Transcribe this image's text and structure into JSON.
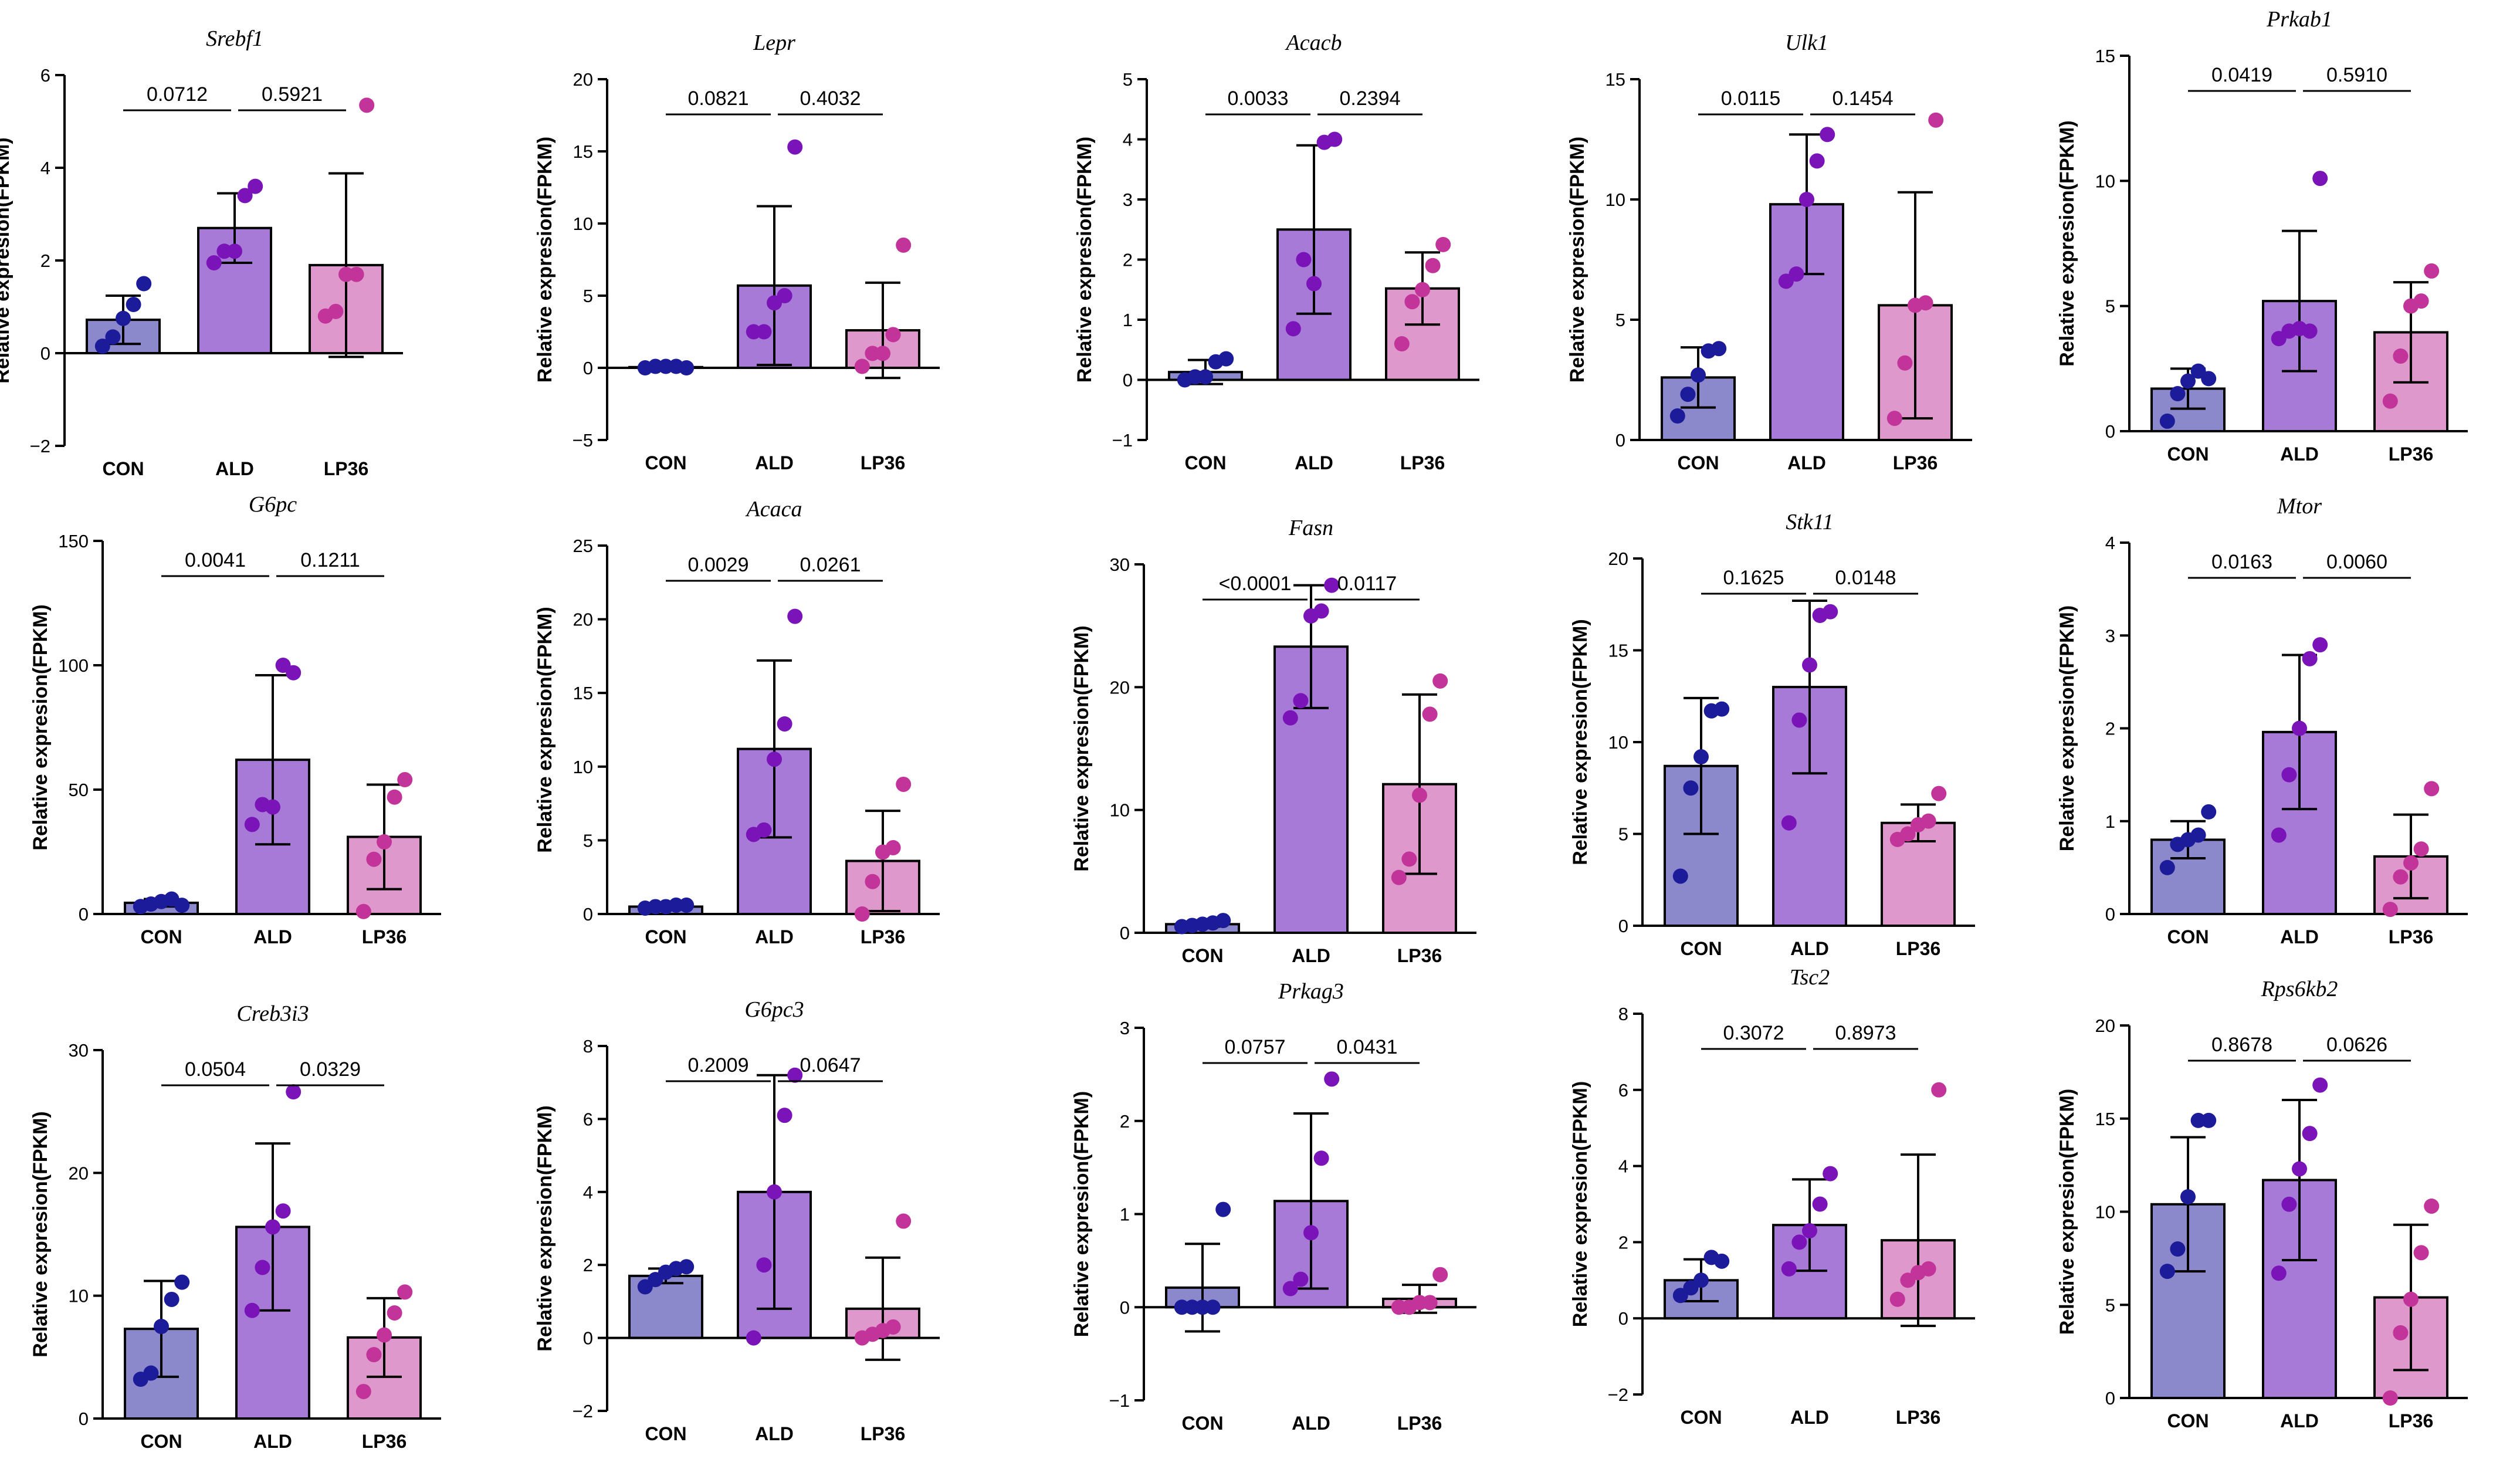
{
  "figure": {
    "ylabel": "Relative expresion(FPKM)",
    "groups": [
      "CON",
      "ALD",
      "LP36"
    ],
    "colors": {
      "bar": [
        "#8c88cc",
        "#a87ad8",
        "#de98cc"
      ],
      "dot": [
        "#1c1c9a",
        "#7a14b8",
        "#c2349a"
      ],
      "axis": "#000000"
    }
  },
  "chart_data": [
    {
      "title": "Srebf1",
      "type": "bar",
      "ylim": [
        -2,
        6
      ],
      "yticks": [
        -2,
        0,
        2,
        4,
        6
      ],
      "ytick_labels": [
        "−2",
        "0",
        "2",
        "4",
        "6"
      ],
      "series": [
        {
          "name": "CON",
          "mean": 0.72,
          "sd": 0.52,
          "points": [
            0.15,
            0.35,
            0.75,
            1.05,
            1.5
          ]
        },
        {
          "name": "ALD",
          "mean": 2.7,
          "sd": 0.75,
          "points": [
            1.95,
            2.2,
            2.2,
            3.4,
            3.6
          ]
        },
        {
          "name": "LP36",
          "mean": 1.9,
          "sd": 1.98,
          "points": [
            0.8,
            0.9,
            1.7,
            1.7,
            5.35
          ]
        }
      ],
      "pvalues": [
        "0.0712",
        "0.5921"
      ]
    },
    {
      "title": "Lepr",
      "type": "bar",
      "ylim": [
        -5,
        20
      ],
      "yticks": [
        -5,
        0,
        5,
        10,
        15,
        20
      ],
      "ytick_labels": [
        "−5",
        "0",
        "5",
        "10",
        "15",
        "20"
      ],
      "series": [
        {
          "name": "CON",
          "mean": 0.05,
          "sd": 0.03,
          "points": [
            0.0,
            0.1,
            0.1,
            0.1,
            0.0
          ]
        },
        {
          "name": "ALD",
          "mean": 5.7,
          "sd": 5.5,
          "points": [
            2.5,
            2.5,
            4.5,
            5.0,
            15.3
          ]
        },
        {
          "name": "LP36",
          "mean": 2.6,
          "sd": 3.3,
          "points": [
            0.1,
            1.0,
            1.0,
            2.3,
            8.5
          ]
        }
      ],
      "pvalues": [
        "0.0821",
        "0.4032"
      ]
    },
    {
      "title": "Acacb",
      "type": "bar",
      "ylim": [
        -1,
        5
      ],
      "yticks": [
        -1,
        0,
        1,
        2,
        3,
        4,
        5
      ],
      "ytick_labels": [
        "−1",
        "0",
        "1",
        "2",
        "3",
        "4",
        "5"
      ],
      "series": [
        {
          "name": "CON",
          "mean": 0.13,
          "sd": 0.2,
          "points": [
            0.0,
            0.05,
            0.05,
            0.3,
            0.35
          ]
        },
        {
          "name": "ALD",
          "mean": 2.5,
          "sd": 1.4,
          "points": [
            0.85,
            2.0,
            1.6,
            3.95,
            4.0
          ]
        },
        {
          "name": "LP36",
          "mean": 1.52,
          "sd": 0.6,
          "points": [
            0.6,
            1.3,
            1.5,
            1.9,
            2.25
          ]
        }
      ],
      "pvalues": [
        "0.0033",
        "0.2394"
      ]
    },
    {
      "title": "Ulk1",
      "type": "bar",
      "ylim": [
        0,
        15
      ],
      "yticks": [
        0,
        5,
        10,
        15
      ],
      "ytick_labels": [
        "0",
        "5",
        "10",
        "15"
      ],
      "series": [
        {
          "name": "CON",
          "mean": 2.6,
          "sd": 1.25,
          "points": [
            1.0,
            1.9,
            2.7,
            3.7,
            3.8
          ]
        },
        {
          "name": "ALD",
          "mean": 9.8,
          "sd": 2.9,
          "points": [
            6.6,
            6.9,
            10.0,
            11.6,
            12.7
          ]
        },
        {
          "name": "LP36",
          "mean": 5.6,
          "sd": 4.7,
          "points": [
            0.9,
            3.2,
            5.6,
            5.7,
            13.3
          ]
        }
      ],
      "pvalues": [
        "0.0115",
        "0.1454"
      ]
    },
    {
      "title": "Prkab1",
      "type": "bar",
      "ylim": [
        0,
        15
      ],
      "yticks": [
        0,
        5,
        10,
        15
      ],
      "ytick_labels": [
        "0",
        "5",
        "10",
        "15"
      ],
      "series": [
        {
          "name": "CON",
          "mean": 1.7,
          "sd": 0.8,
          "points": [
            0.4,
            1.5,
            2.0,
            2.4,
            2.1
          ]
        },
        {
          "name": "ALD",
          "mean": 5.2,
          "sd": 2.8,
          "points": [
            3.7,
            4.0,
            4.1,
            4.0,
            10.1
          ]
        },
        {
          "name": "LP36",
          "mean": 3.95,
          "sd": 2.0,
          "points": [
            1.2,
            3.0,
            5.0,
            5.2,
            6.4
          ]
        }
      ],
      "pvalues": [
        "0.0419",
        "0.5910"
      ]
    },
    {
      "title": "G6pc",
      "type": "bar",
      "ylim": [
        0,
        150
      ],
      "yticks": [
        0,
        50,
        100,
        150
      ],
      "ytick_labels": [
        "0",
        "50",
        "100",
        "150"
      ],
      "series": [
        {
          "name": "CON",
          "mean": 4.5,
          "sd": 1.5,
          "points": [
            3.0,
            4.0,
            5.0,
            6.0,
            3.5
          ]
        },
        {
          "name": "ALD",
          "mean": 62,
          "sd": 34,
          "points": [
            36.0,
            44.0,
            43.0,
            100.0,
            97.0
          ]
        },
        {
          "name": "LP36",
          "mean": 31,
          "sd": 21,
          "points": [
            1.0,
            22.0,
            29.0,
            47.0,
            54.0
          ]
        }
      ],
      "pvalues": [
        "0.0041",
        "0.1211"
      ]
    },
    {
      "title": "Acaca",
      "type": "bar",
      "ylim": [
        0,
        25
      ],
      "yticks": [
        0,
        5,
        10,
        15,
        20,
        25
      ],
      "ytick_labels": [
        "0",
        "5",
        "10",
        "15",
        "20",
        "25"
      ],
      "series": [
        {
          "name": "CON",
          "mean": 0.5,
          "sd": 0.1,
          "points": [
            0.4,
            0.5,
            0.5,
            0.6,
            0.6
          ]
        },
        {
          "name": "ALD",
          "mean": 11.2,
          "sd": 6.0,
          "points": [
            5.4,
            5.7,
            10.5,
            12.9,
            20.2
          ]
        },
        {
          "name": "LP36",
          "mean": 3.6,
          "sd": 3.4,
          "points": [
            0.0,
            2.2,
            4.2,
            4.5,
            8.8
          ]
        }
      ],
      "pvalues": [
        "0.0029",
        "0.0261"
      ]
    },
    {
      "title": "Fasn",
      "type": "bar",
      "ylim": [
        0,
        30
      ],
      "yticks": [
        0,
        10,
        20,
        30
      ],
      "ytick_labels": [
        "0",
        "10",
        "20",
        "30"
      ],
      "series": [
        {
          "name": "CON",
          "mean": 0.7,
          "sd": 0.2,
          "points": [
            0.5,
            0.6,
            0.7,
            0.8,
            1.0
          ]
        },
        {
          "name": "ALD",
          "mean": 23.3,
          "sd": 5.0,
          "points": [
            17.5,
            18.9,
            25.8,
            26.2,
            28.3
          ]
        },
        {
          "name": "LP36",
          "mean": 12.1,
          "sd": 7.3,
          "points": [
            4.5,
            6.0,
            11.2,
            17.8,
            20.5
          ]
        }
      ],
      "pvalues": [
        "<0.0001",
        "0.0117"
      ]
    },
    {
      "title": "Stk11",
      "type": "bar",
      "ylim": [
        0,
        20
      ],
      "yticks": [
        0,
        5,
        10,
        15,
        20
      ],
      "ytick_labels": [
        "0",
        "5",
        "10",
        "15",
        "20"
      ],
      "series": [
        {
          "name": "CON",
          "mean": 8.7,
          "sd": 3.7,
          "points": [
            2.7,
            7.5,
            9.2,
            11.7,
            11.8
          ]
        },
        {
          "name": "ALD",
          "mean": 13.0,
          "sd": 4.7,
          "points": [
            5.6,
            11.2,
            14.2,
            16.9,
            17.1
          ]
        },
        {
          "name": "LP36",
          "mean": 5.6,
          "sd": 1.0,
          "points": [
            4.7,
            5.0,
            5.5,
            5.7,
            7.2
          ]
        }
      ],
      "pvalues": [
        "0.1625",
        "0.0148"
      ]
    },
    {
      "title": "Mtor",
      "type": "bar",
      "ylim": [
        0,
        4
      ],
      "yticks": [
        0,
        1,
        2,
        3,
        4
      ],
      "ytick_labels": [
        "0",
        "1",
        "2",
        "3",
        "4"
      ],
      "series": [
        {
          "name": "CON",
          "mean": 0.8,
          "sd": 0.2,
          "points": [
            0.5,
            0.75,
            0.8,
            0.85,
            1.1
          ]
        },
        {
          "name": "ALD",
          "mean": 1.96,
          "sd": 0.83,
          "points": [
            0.85,
            1.5,
            2.0,
            2.75,
            2.9
          ]
        },
        {
          "name": "LP36",
          "mean": 0.62,
          "sd": 0.45,
          "points": [
            0.05,
            0.4,
            0.55,
            0.7,
            1.35
          ]
        }
      ],
      "pvalues": [
        "0.0163",
        "0.0060"
      ]
    },
    {
      "title": "Creb3i3",
      "type": "bar",
      "ylim": [
        0,
        30
      ],
      "yticks": [
        0,
        10,
        20,
        30
      ],
      "ytick_labels": [
        "0",
        "10",
        "20",
        "30"
      ],
      "series": [
        {
          "name": "CON",
          "mean": 7.3,
          "sd": 3.9,
          "points": [
            3.2,
            3.7,
            7.5,
            9.7,
            11.1
          ]
        },
        {
          "name": "ALD",
          "mean": 15.6,
          "sd": 6.8,
          "points": [
            8.8,
            12.3,
            15.6,
            16.9,
            26.6
          ]
        },
        {
          "name": "LP36",
          "mean": 6.6,
          "sd": 3.2,
          "points": [
            2.2,
            5.2,
            6.8,
            8.6,
            10.3
          ]
        }
      ],
      "pvalues": [
        "0.0504",
        "0.0329"
      ]
    },
    {
      "title": "G6pc3",
      "type": "bar",
      "ylim": [
        -2,
        8
      ],
      "yticks": [
        -2,
        0,
        2,
        4,
        6,
        8
      ],
      "ytick_labels": [
        "−2",
        "0",
        "2",
        "4",
        "6",
        "8"
      ],
      "series": [
        {
          "name": "CON",
          "mean": 1.7,
          "sd": 0.2,
          "points": [
            1.4,
            1.6,
            1.8,
            1.9,
            1.95
          ]
        },
        {
          "name": "ALD",
          "mean": 4.0,
          "sd": 3.2,
          "points": [
            0.0,
            2.0,
            4.0,
            6.1,
            7.2
          ]
        },
        {
          "name": "LP36",
          "mean": 0.8,
          "sd": 1.4,
          "points": [
            0.0,
            0.1,
            0.2,
            0.3,
            3.2
          ]
        }
      ],
      "pvalues": [
        "0.2009",
        "0.0647"
      ]
    },
    {
      "title": "Prkag3",
      "type": "bar",
      "ylim": [
        -1,
        3
      ],
      "yticks": [
        -1,
        0,
        1,
        2,
        3
      ],
      "ytick_labels": [
        "−1",
        "0",
        "1",
        "2",
        "3"
      ],
      "series": [
        {
          "name": "CON",
          "mean": 0.21,
          "sd": 0.47,
          "points": [
            0.0,
            0.0,
            0.0,
            0.0,
            1.05
          ]
        },
        {
          "name": "ALD",
          "mean": 1.14,
          "sd": 0.94,
          "points": [
            0.2,
            0.3,
            0.8,
            1.6,
            2.45
          ]
        },
        {
          "name": "LP36",
          "mean": 0.09,
          "sd": 0.15,
          "points": [
            0.0,
            0.0,
            0.05,
            0.05,
            0.35
          ]
        }
      ],
      "pvalues": [
        "0.0757",
        "0.0431"
      ]
    },
    {
      "title": "Tsc2",
      "type": "bar",
      "ylim": [
        -2,
        8
      ],
      "yticks": [
        -2,
        0,
        2,
        4,
        6,
        8
      ],
      "ytick_labels": [
        "−2",
        "0",
        "2",
        "4",
        "6",
        "8"
      ],
      "series": [
        {
          "name": "CON",
          "mean": 1.0,
          "sd": 0.55,
          "points": [
            0.6,
            0.8,
            1.0,
            1.6,
            1.5
          ]
        },
        {
          "name": "ALD",
          "mean": 2.45,
          "sd": 1.2,
          "points": [
            1.3,
            2.0,
            2.3,
            3.0,
            3.8
          ]
        },
        {
          "name": "LP36",
          "mean": 2.05,
          "sd": 2.25,
          "points": [
            0.5,
            1.0,
            1.2,
            1.3,
            6.0
          ]
        }
      ],
      "pvalues": [
        "0.3072",
        "0.8973"
      ]
    },
    {
      "title": "Rps6kb2",
      "type": "bar",
      "ylim": [
        0,
        20
      ],
      "yticks": [
        0,
        5,
        10,
        15,
        20
      ],
      "ytick_labels": [
        "0",
        "5",
        "10",
        "15",
        "20"
      ],
      "series": [
        {
          "name": "CON",
          "mean": 10.4,
          "sd": 3.6,
          "points": [
            6.8,
            8.0,
            10.8,
            14.9,
            14.9
          ]
        },
        {
          "name": "ALD",
          "mean": 11.7,
          "sd": 4.3,
          "points": [
            6.7,
            10.4,
            12.3,
            14.2,
            16.8
          ]
        },
        {
          "name": "LP36",
          "mean": 5.4,
          "sd": 3.9,
          "points": [
            0.0,
            3.5,
            5.3,
            7.8,
            10.3
          ]
        }
      ],
      "pvalues": [
        "0.8678",
        "0.0626"
      ]
    }
  ]
}
